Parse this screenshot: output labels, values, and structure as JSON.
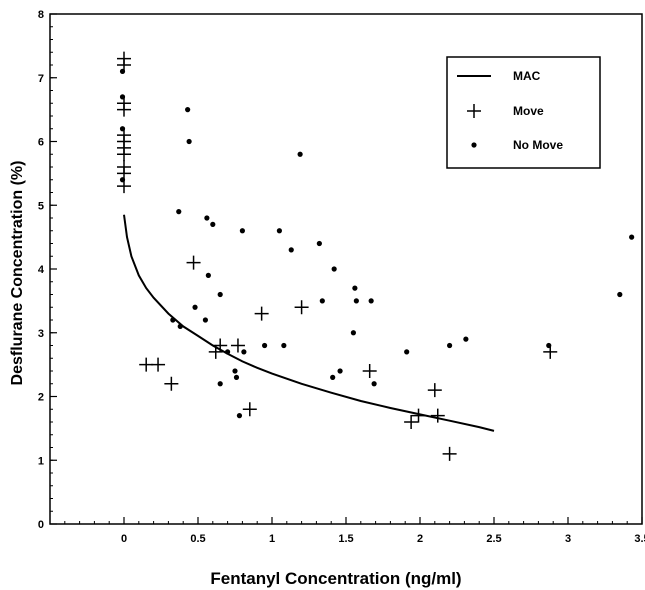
{
  "chart_data": {
    "type": "scatter",
    "xlabel": "Fentanyl Concentration (ng/ml)",
    "ylabel": "Desflurane Concentration (%)",
    "xlim": [
      -0.5,
      3.5
    ],
    "ylim": [
      0,
      8
    ],
    "x_ticks": [
      0,
      0.5,
      1,
      1.5,
      2,
      2.5,
      3,
      3.5
    ],
    "x_tick_labels": [
      "0",
      "0.5",
      "1",
      "1.5",
      "2",
      "2.5",
      "3",
      "3.5"
    ],
    "y_ticks": [
      0,
      1,
      2,
      3,
      4,
      5,
      6,
      7,
      8
    ],
    "y_tick_labels": [
      "0",
      "1",
      "2",
      "3",
      "4",
      "5",
      "6",
      "7",
      "8"
    ],
    "grid": false,
    "legend": {
      "position": "top-right",
      "entries": [
        {
          "label": "MAC",
          "marker": "line"
        },
        {
          "label": "Move",
          "marker": "plus"
        },
        {
          "label": "No Move",
          "marker": "dot"
        }
      ]
    },
    "series": [
      {
        "name": "MAC",
        "kind": "line",
        "points": [
          [
            0.0,
            4.85
          ],
          [
            0.02,
            4.5
          ],
          [
            0.05,
            4.2
          ],
          [
            0.1,
            3.9
          ],
          [
            0.15,
            3.7
          ],
          [
            0.2,
            3.55
          ],
          [
            0.3,
            3.3
          ],
          [
            0.4,
            3.1
          ],
          [
            0.5,
            2.95
          ],
          [
            0.6,
            2.8
          ],
          [
            0.7,
            2.67
          ],
          [
            0.8,
            2.55
          ],
          [
            0.9,
            2.45
          ],
          [
            1.0,
            2.36
          ],
          [
            1.2,
            2.2
          ],
          [
            1.4,
            2.06
          ],
          [
            1.6,
            1.93
          ],
          [
            1.8,
            1.82
          ],
          [
            2.0,
            1.72
          ],
          [
            2.2,
            1.62
          ],
          [
            2.4,
            1.52
          ],
          [
            2.5,
            1.46
          ]
        ]
      },
      {
        "name": "Move",
        "kind": "plus",
        "points": [
          [
            0,
            7.3
          ],
          [
            0,
            7.2
          ],
          [
            0,
            6.6
          ],
          [
            0,
            6.5
          ],
          [
            0,
            6.1
          ],
          [
            0,
            6.0
          ],
          [
            0,
            5.9
          ],
          [
            0,
            5.8
          ],
          [
            0,
            5.6
          ],
          [
            0,
            5.5
          ],
          [
            0,
            5.3
          ],
          [
            0.15,
            2.5
          ],
          [
            0.23,
            2.5
          ],
          [
            0.32,
            2.2
          ],
          [
            0.47,
            4.1
          ],
          [
            0.62,
            2.7
          ],
          [
            0.65,
            2.8
          ],
          [
            0.77,
            2.8
          ],
          [
            0.85,
            1.8
          ],
          [
            0.93,
            3.3
          ],
          [
            1.2,
            3.4
          ],
          [
            1.66,
            2.4
          ],
          [
            1.94,
            1.6
          ],
          [
            1.99,
            1.7
          ],
          [
            2.1,
            2.1
          ],
          [
            2.12,
            1.7
          ],
          [
            2.2,
            1.1
          ],
          [
            2.88,
            2.7
          ]
        ]
      },
      {
        "name": "No Move",
        "kind": "dot",
        "points": [
          [
            -0.01,
            7.1
          ],
          [
            -0.01,
            6.7
          ],
          [
            -0.01,
            6.2
          ],
          [
            -0.01,
            5.4
          ],
          [
            0.33,
            3.2
          ],
          [
            0.37,
            4.9
          ],
          [
            0.38,
            3.1
          ],
          [
            0.43,
            6.5
          ],
          [
            0.44,
            6.0
          ],
          [
            0.48,
            3.4
          ],
          [
            0.55,
            3.2
          ],
          [
            0.56,
            4.8
          ],
          [
            0.57,
            3.9
          ],
          [
            0.6,
            4.7
          ],
          [
            0.65,
            3.6
          ],
          [
            0.65,
            2.2
          ],
          [
            0.7,
            2.7
          ],
          [
            0.75,
            2.4
          ],
          [
            0.76,
            2.3
          ],
          [
            0.78,
            1.7
          ],
          [
            0.8,
            4.6
          ],
          [
            0.81,
            2.7
          ],
          [
            0.95,
            2.8
          ],
          [
            1.05,
            4.6
          ],
          [
            1.08,
            2.8
          ],
          [
            1.13,
            4.3
          ],
          [
            1.19,
            5.8
          ],
          [
            1.32,
            4.4
          ],
          [
            1.34,
            3.5
          ],
          [
            1.41,
            2.3
          ],
          [
            1.42,
            4.0
          ],
          [
            1.46,
            2.4
          ],
          [
            1.55,
            3.0
          ],
          [
            1.56,
            3.7
          ],
          [
            1.57,
            3.5
          ],
          [
            1.67,
            3.5
          ],
          [
            1.69,
            2.2
          ],
          [
            1.91,
            2.7
          ],
          [
            2.2,
            2.8
          ],
          [
            2.31,
            2.9
          ],
          [
            2.87,
            2.8
          ],
          [
            3.35,
            3.6
          ],
          [
            3.43,
            4.5
          ]
        ]
      }
    ]
  }
}
